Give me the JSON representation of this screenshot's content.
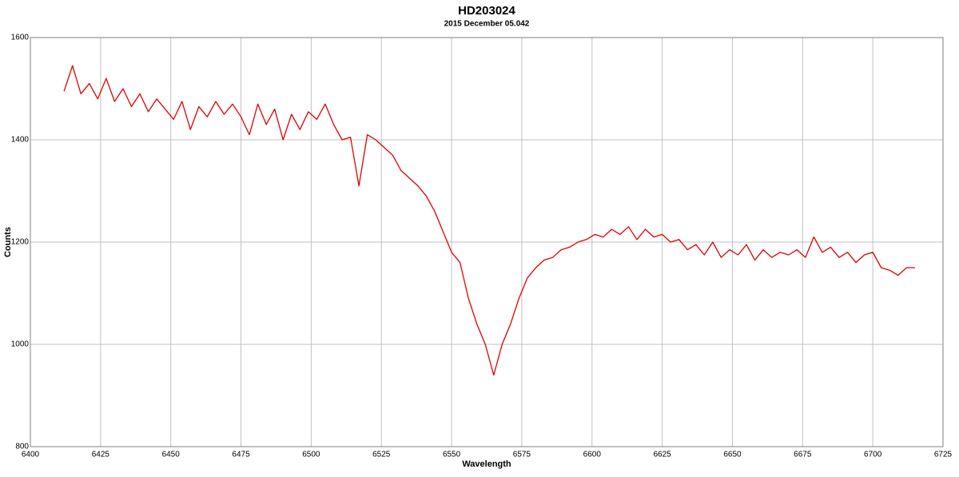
{
  "chart_data": {
    "type": "line",
    "title": "HD203024",
    "subtitle": "2015 December 05.042",
    "x_label": "Wavelength",
    "y_label": "Counts",
    "x": [
      6412,
      6415,
      6418,
      6421,
      6424,
      6427,
      6430,
      6433,
      6436,
      6439,
      6442,
      6445,
      6448,
      6451,
      6454,
      6457,
      6460,
      6463,
      6466,
      6469,
      6472,
      6475,
      6478,
      6481,
      6484,
      6487,
      6490,
      6493,
      6496,
      6499,
      6502,
      6505,
      6508,
      6511,
      6514,
      6517,
      6520,
      6523,
      6526,
      6529,
      6532,
      6535,
      6538,
      6541,
      6544,
      6547,
      6550,
      6553,
      6556,
      6559,
      6562,
      6565,
      6568,
      6571,
      6574,
      6577,
      6580,
      6583,
      6586,
      6589,
      6592,
      6595,
      6598,
      6601,
      6604,
      6607,
      6610,
      6613,
      6616,
      6619,
      6622,
      6625,
      6628,
      6631,
      6634,
      6637,
      6640,
      6643,
      6646,
      6649,
      6652,
      6655,
      6658,
      6661,
      6664,
      6667,
      6670,
      6673,
      6676,
      6679,
      6682,
      6685,
      6688,
      6691,
      6694,
      6697,
      6700,
      6703,
      6706,
      6709,
      6712,
      6715
    ],
    "series": [
      {
        "name": "HD203024",
        "color": "#e00000",
        "values": [
          1495,
          1545,
          1490,
          1510,
          1480,
          1520,
          1475,
          1500,
          1465,
          1490,
          1455,
          1480,
          1460,
          1440,
          1475,
          1420,
          1465,
          1445,
          1475,
          1450,
          1470,
          1445,
          1410,
          1470,
          1430,
          1460,
          1400,
          1450,
          1420,
          1455,
          1440,
          1470,
          1430,
          1400,
          1405,
          1310,
          1410,
          1400,
          1385,
          1370,
          1340,
          1325,
          1310,
          1290,
          1260,
          1220,
          1180,
          1160,
          1090,
          1040,
          1000,
          940,
          1000,
          1040,
          1090,
          1130,
          1150,
          1165,
          1170,
          1185,
          1190,
          1200,
          1205,
          1215,
          1210,
          1225,
          1215,
          1230,
          1205,
          1225,
          1210,
          1215,
          1200,
          1205,
          1185,
          1195,
          1175,
          1200,
          1170,
          1185,
          1175,
          1195,
          1165,
          1185,
          1170,
          1180,
          1175,
          1185,
          1170,
          1210,
          1180,
          1190,
          1170,
          1180,
          1160,
          1175,
          1180,
          1150,
          1145,
          1135,
          1150,
          1150
        ]
      }
    ],
    "xlim": [
      6400,
      6725
    ],
    "xticks": [
      6400,
      6425,
      6450,
      6475,
      6500,
      6525,
      6550,
      6575,
      6600,
      6625,
      6650,
      6675,
      6700,
      6725
    ],
    "ylim": [
      800,
      1600
    ],
    "yticks": [
      800,
      1000,
      1200,
      1400,
      1600
    ],
    "grid": true
  }
}
